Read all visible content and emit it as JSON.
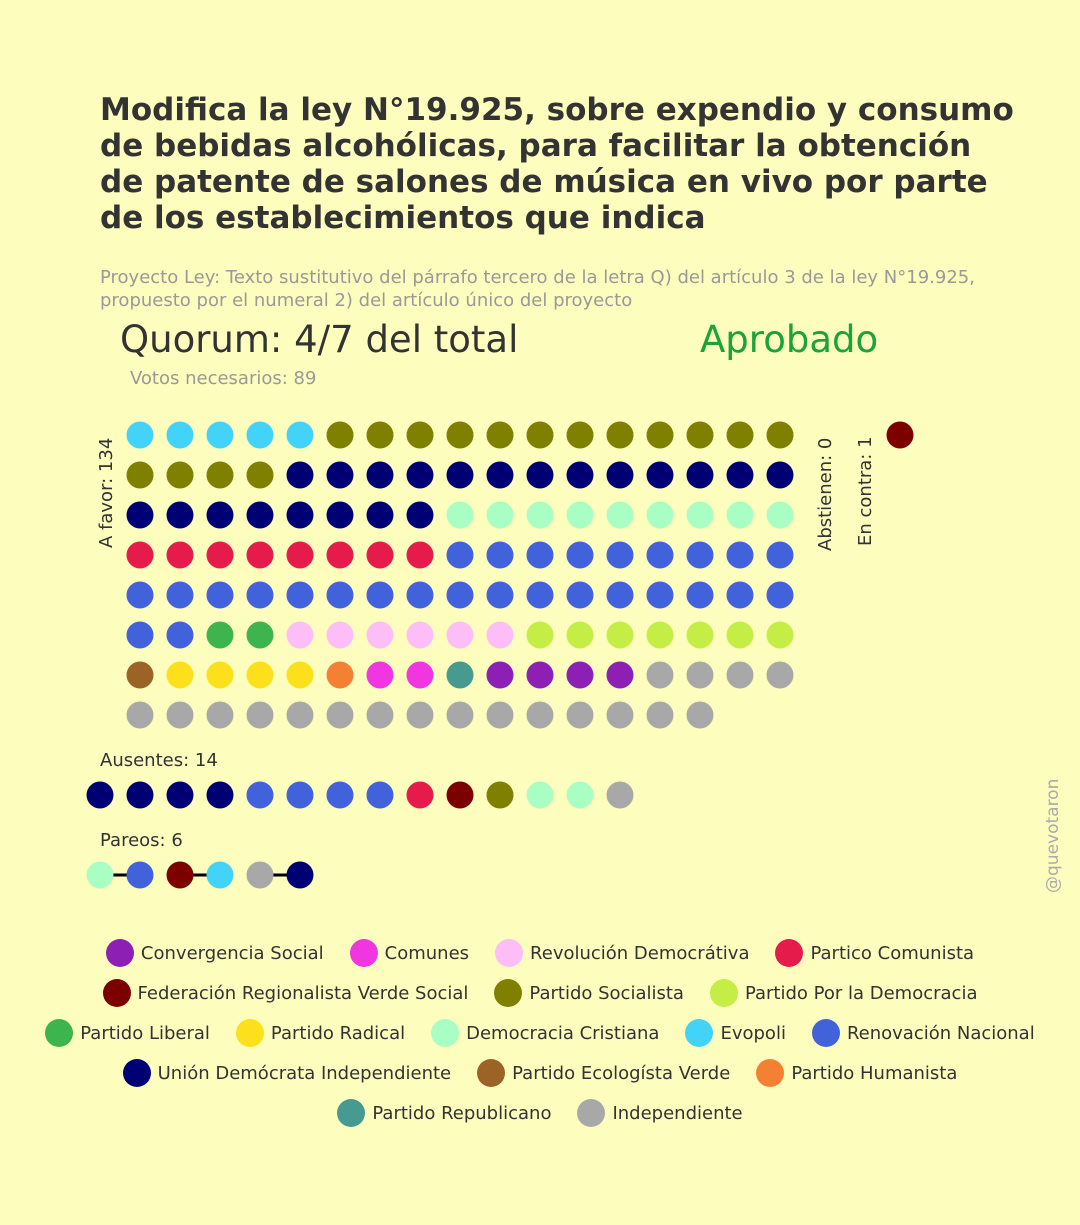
{
  "title": "Modifica la ley N°19.925, sobre expendio y consumo de bebidas alcohólicas, para facilitar la obtención de patente de salones de música en vivo por parte de los establecimientos que indica",
  "subtitle": "Proyecto Ley: Texto sustitutivo del párrafo tercero de la letra Q) del artículo 3 de la ley N°19.925, propuesto por el numeral 2) del artículo único del proyecto",
  "quorum": "Quorum: 4/7 del total",
  "result": "Aprobado",
  "votes_needed": "Votos necesarios: 89",
  "watermark": "@quevotaron",
  "colors": {
    "result": "#1aa33a",
    "background": "#fdfdbe"
  },
  "chart_data": {
    "type": "dot-grid",
    "groups": [
      {
        "key": "favor",
        "label": "A favor: 134",
        "count": 134,
        "dots": [
          {
            "party": "Evopoli",
            "count": 5
          },
          {
            "party": "Partido Socialista",
            "count": 16
          },
          {
            "party": "Unión Demócrata Independiente",
            "count": 21
          },
          {
            "party": "Democracia Cristiana",
            "count": 9
          },
          {
            "party": "Partico Comunista",
            "count": 8
          },
          {
            "party": "Renovación Nacional",
            "count": 28
          },
          {
            "party": "Partido Liberal",
            "count": 2
          },
          {
            "party": "Revolución Democrátiva",
            "count": 6
          },
          {
            "party": "Partido Por la Democracia",
            "count": 7
          },
          {
            "party": "Partido Ecologísta Verde",
            "count": 1
          },
          {
            "party": "Partido Radical",
            "count": 4
          },
          {
            "party": "Partido Humanista",
            "count": 1
          },
          {
            "party": "Comunes",
            "count": 2
          },
          {
            "party": "Partido Republicano",
            "count": 1
          },
          {
            "party": "Convergencia Social",
            "count": 4
          },
          {
            "party": "Independiente",
            "count": 19
          }
        ]
      },
      {
        "key": "abstain",
        "label": "Abstienen: 0",
        "count": 0,
        "dots": []
      },
      {
        "key": "contra",
        "label": "En contra: 1",
        "count": 1,
        "dots": [
          {
            "party": "Federación Regionalista Verde Social",
            "count": 1
          }
        ]
      },
      {
        "key": "ausentes",
        "label": "Ausentes: 14",
        "count": 14,
        "dots": [
          {
            "party": "Unión Demócrata Independiente",
            "count": 4
          },
          {
            "party": "Renovación Nacional",
            "count": 4
          },
          {
            "party": "Partico Comunista",
            "count": 1
          },
          {
            "party": "Federación Regionalista Verde Social",
            "count": 1
          },
          {
            "party": "Partido Socialista",
            "count": 1
          },
          {
            "party": "Democracia Cristiana",
            "count": 2
          },
          {
            "party": "Independiente",
            "count": 1
          }
        ]
      },
      {
        "key": "pareos",
        "label": "Pareos: 6",
        "count": 6,
        "pairs": [
          [
            "Democracia Cristiana",
            "Renovación Nacional"
          ],
          [
            "Federación Regionalista Verde Social",
            "Evopoli"
          ],
          [
            "Independiente",
            "Unión Demócrata Independiente"
          ]
        ]
      }
    ],
    "legend": [
      {
        "name": "Convergencia Social",
        "color": "#8e1fb5"
      },
      {
        "name": "Comunes",
        "color": "#ef36e0"
      },
      {
        "name": "Revolución Democrátiva",
        "color": "#fdbdf6"
      },
      {
        "name": "Partico Comunista",
        "color": "#e51b4b"
      },
      {
        "name": "Federación Regionalista Verde Social",
        "color": "#7d0000"
      },
      {
        "name": "Partido Socialista",
        "color": "#7f7f00"
      },
      {
        "name": "Partido Por la Democracia",
        "color": "#c4ee45"
      },
      {
        "name": "Partido Liberal",
        "color": "#3db44d"
      },
      {
        "name": "Partido Radical",
        "color": "#fde01c"
      },
      {
        "name": "Democracia Cristiana",
        "color": "#a9fec4"
      },
      {
        "name": "Evopoli",
        "color": "#43d3f8"
      },
      {
        "name": "Renovación Nacional",
        "color": "#4262db"
      },
      {
        "name": "Unión Demócrata Independiente",
        "color": "#000075"
      },
      {
        "name": "Partido Ecologísta Verde",
        "color": "#9b6325"
      },
      {
        "name": "Partido Humanista",
        "color": "#f48133"
      },
      {
        "name": "Partido Republicano",
        "color": "#469a90"
      },
      {
        "name": "Independiente",
        "color": "#a8a8a8"
      }
    ],
    "legend_rows": [
      [
        "Convergencia Social",
        "Comunes",
        "Revolución Democrátiva",
        "Partico Comunista"
      ],
      [
        "Federación Regionalista Verde Social",
        "Partido Socialista",
        "Partido Por la Democracia"
      ],
      [
        "Partido Liberal",
        "Partido Radical",
        "Democracia Cristiana",
        "Evopoli",
        "Renovación Nacional"
      ],
      [
        "Unión Demócrata Independiente",
        "Partido Ecologísta Verde",
        "Partido Humanista"
      ],
      [
        "Partido Republicano",
        "Independiente"
      ]
    ]
  }
}
